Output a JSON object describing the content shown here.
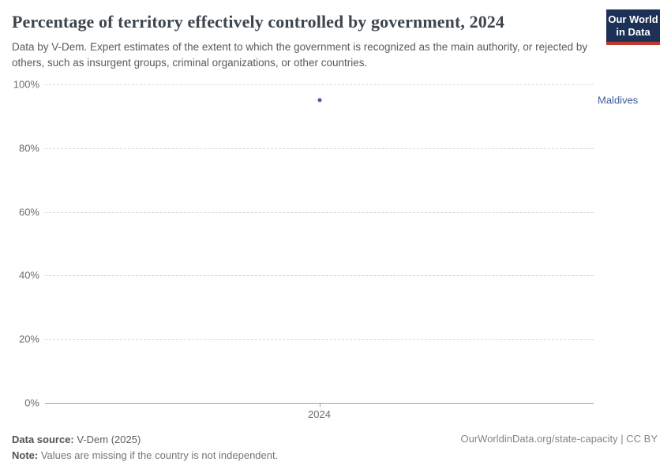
{
  "header": {
    "title": "Percentage of territory effectively controlled by government, 2024",
    "subtitle": "Data by V-Dem. Expert estimates of the extent to which the government is recognized as the main authority, or rejected by others, such as insurgent groups, criminal organizations, or other countries."
  },
  "logo": {
    "line1": "Our World",
    "line2": "in Data",
    "bg_color": "#1d3156",
    "accent_color": "#c0392e"
  },
  "chart_data": {
    "type": "scatter",
    "title": "Percentage of territory effectively controlled by government, 2024",
    "xlabel": "",
    "ylabel": "",
    "x": [
      2024
    ],
    "series": [
      {
        "name": "Maldives",
        "values": [
          95
        ],
        "color": "#3e5d99"
      }
    ],
    "ylim": [
      0,
      100
    ],
    "yticks": [
      {
        "value": 0,
        "label": "0%"
      },
      {
        "value": 20,
        "label": "20%"
      },
      {
        "value": 40,
        "label": "40%"
      },
      {
        "value": 60,
        "label": "60%"
      },
      {
        "value": 80,
        "label": "80%"
      },
      {
        "value": 100,
        "label": "100%"
      }
    ],
    "xticks": [
      {
        "value": 2024,
        "label": "2024"
      }
    ],
    "grid": true,
    "legend_position": "right-of-point"
  },
  "footer": {
    "source_label": "Data source:",
    "source_value": "V-Dem (2025)",
    "note_label": "Note:",
    "note_value": "Values are missing if the country is not independent.",
    "origin_url": "OurWorldinData.org/state-capacity | CC BY"
  }
}
